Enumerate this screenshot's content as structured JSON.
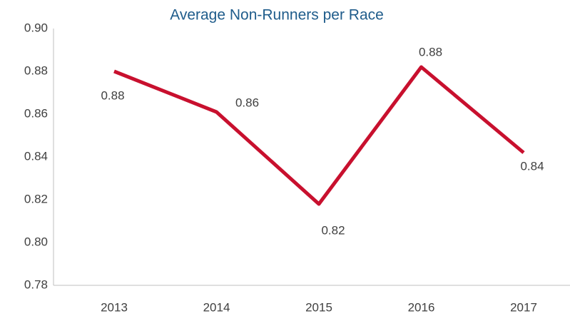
{
  "chart_data": {
    "type": "line",
    "title": "Average Non-Runners per Race",
    "categories": [
      "2013",
      "2014",
      "2015",
      "2016",
      "2017"
    ],
    "series": [
      {
        "name": "Average Non-Runners per Race",
        "color": "#c8102e",
        "values": [
          0.88,
          0.861,
          0.818,
          0.882,
          0.842
        ],
        "value_labels": [
          "0.88",
          "0.86",
          "0.82",
          "0.88",
          "0.84"
        ]
      }
    ],
    "ylim": [
      0.78,
      0.9
    ],
    "yticks": [
      0.78,
      {
        "value": 0.8,
        "label": "0.80"
      },
      0.82,
      0.84,
      0.86,
      0.88,
      {
        "value": 0.9,
        "label": "0.90"
      }
    ],
    "grid": false
  }
}
